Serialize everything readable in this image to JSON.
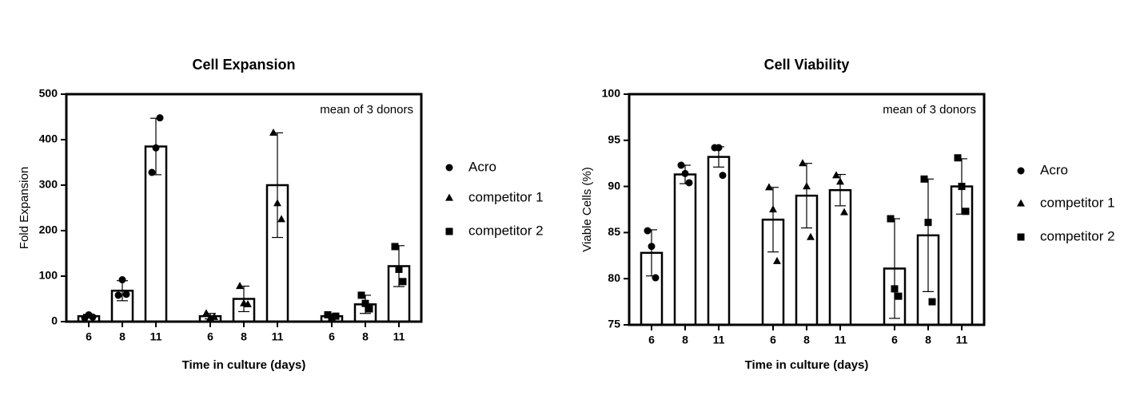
{
  "chart_data": [
    {
      "type": "bar",
      "title": "Cell Expansion",
      "xlabel": "Time in culture (days)",
      "ylabel": "Fold Expansion",
      "annotation": "mean of 3 donors",
      "categories": [
        "6",
        "8",
        "11"
      ],
      "ylim": [
        0,
        500
      ],
      "yticks": [
        0,
        100,
        200,
        300,
        400,
        500
      ],
      "series": [
        {
          "name": "Acro",
          "marker": "circle",
          "color": "#000000",
          "values": [
            12,
            68,
            385
          ],
          "errors": [
            4,
            22,
            62
          ],
          "points": [
            [
              8,
              15,
              10
            ],
            [
              58,
              92,
              60
            ],
            [
              328,
              382,
              448
            ]
          ]
        },
        {
          "name": "competitor 1",
          "marker": "triangle",
          "color": "#000000",
          "values": [
            12,
            50,
            300
          ],
          "errors": [
            6,
            28,
            115
          ],
          "points": [
            [
              18,
              8,
              10
            ],
            [
              78,
              40,
              38
            ],
            [
              415,
              260,
              225
            ]
          ]
        },
        {
          "name": "competitor 2",
          "marker": "square",
          "color": "#000000",
          "values": [
            12,
            38,
            122
          ],
          "errors": [
            3,
            20,
            45
          ],
          "points": [
            [
              15,
              10,
              12
            ],
            [
              58,
              40,
              28
            ],
            [
              165,
              115,
              88
            ]
          ]
        }
      ]
    },
    {
      "type": "bar",
      "title": "Cell Viability",
      "xlabel": "Time in culture (days)",
      "ylabel": "Viable Cells (%)",
      "annotation": "mean of 3 donors",
      "categories": [
        "6",
        "8",
        "11"
      ],
      "ylim": [
        75,
        100
      ],
      "yticks": [
        75,
        80,
        85,
        90,
        95,
        100
      ],
      "series": [
        {
          "name": "Acro",
          "marker": "circle",
          "color": "#000000",
          "values": [
            82.8,
            91.3,
            93.2
          ],
          "errors": [
            2.5,
            1,
            1.1
          ],
          "points": [
            [
              85.2,
              83.5,
              80.1
            ],
            [
              92.3,
              91.4,
              90.4
            ],
            [
              94.2,
              94.2,
              91.2
            ]
          ]
        },
        {
          "name": "competitor 1",
          "marker": "triangle",
          "color": "#000000",
          "values": [
            86.4,
            89,
            89.6
          ],
          "errors": [
            3.5,
            3.5,
            1.7
          ],
          "points": [
            [
              89.9,
              87.5,
              81.9
            ],
            [
              92.5,
              90,
              84.5
            ],
            [
              91.2,
              90.5,
              87.2
            ]
          ]
        },
        {
          "name": "competitor 2",
          "marker": "square",
          "color": "#000000",
          "values": [
            81.1,
            84.7,
            90
          ],
          "errors": [
            5.4,
            6.1,
            3
          ],
          "points": [
            [
              86.5,
              78.9,
              78.1
            ],
            [
              90.8,
              86.1,
              77.5
            ],
            [
              93.1,
              90,
              87.3
            ]
          ]
        }
      ]
    }
  ]
}
